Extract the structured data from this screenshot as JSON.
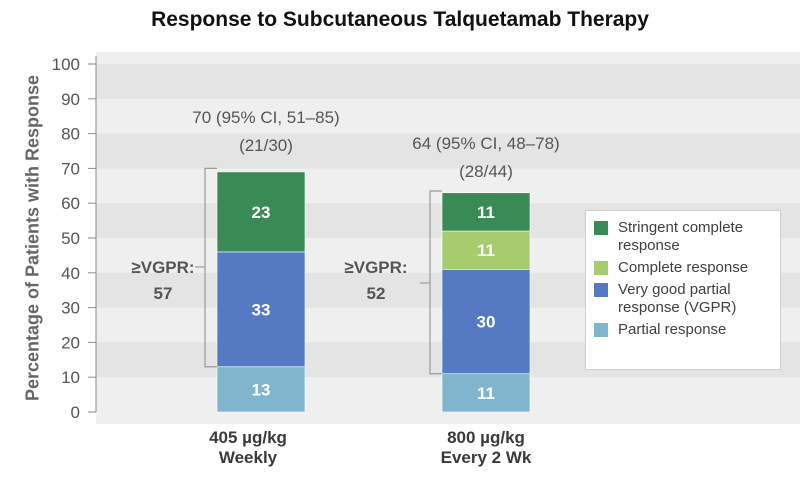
{
  "chart_data": {
    "type": "bar",
    "stacked": true,
    "title": "Response to Subcutaneous Talquetamab Therapy",
    "ylabel": "Percentage of Patients with Response",
    "ylim": [
      0,
      100
    ],
    "yticks": [
      "0",
      "10",
      "20",
      "30",
      "40",
      "50",
      "60",
      "70",
      "80",
      "90",
      "100"
    ],
    "categories": [
      "405 µg/kg Weekly",
      "800 µg/kg Every 2 Wk"
    ],
    "category_labels": [
      {
        "line1": "405 µg/kg",
        "line2": "Weekly"
      },
      {
        "line1": "800 µg/kg",
        "line2": "Every 2 Wk"
      }
    ],
    "series": [
      {
        "name": "Partial response",
        "color": "#7fb6cd",
        "values": [
          13,
          11
        ]
      },
      {
        "name": "Very good partial response (VGPR)",
        "color": "#5579c3",
        "values": [
          33,
          30
        ]
      },
      {
        "name": "Complete response",
        "color": "#a6cc6e",
        "values": [
          0,
          11
        ]
      },
      {
        "name": "Stringent complete response",
        "color": "#3a8a55",
        "values": [
          23,
          11
        ]
      }
    ],
    "data_labels": [
      [
        "13",
        "11"
      ],
      [
        "33",
        "30"
      ],
      [
        "",
        "11"
      ],
      [
        "23",
        "11"
      ]
    ],
    "totals": [
      70,
      64
    ],
    "annotations": [
      {
        "line1": "70 (95% CI, 51–85)",
        "line2": "(21/30)"
      },
      {
        "line1": "64 (95% CI, 48–78)",
        "line2": "(28/44)"
      }
    ],
    "vgpr_brackets": [
      {
        "label": "≥VGPR:",
        "value": "57",
        "from": 13,
        "to": 70
      },
      {
        "label": "≥VGPR:",
        "value": "52",
        "from": 11,
        "to": 63.5
      }
    ],
    "legend": {
      "placement": "right",
      "entries": [
        {
          "label": "Stringent complete response",
          "color": "#3a8a55"
        },
        {
          "label": "Complete response",
          "color": "#a6cc6e"
        },
        {
          "label": "Very good partial response (VGPR)",
          "color": "#5579c3"
        },
        {
          "label": "Partial response",
          "color": "#7fb6cd"
        }
      ]
    },
    "grid": true
  }
}
